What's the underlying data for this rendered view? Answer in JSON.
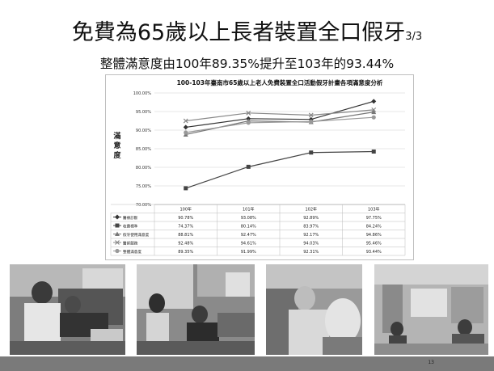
{
  "slide": {
    "title_main": "免費為65歲以上長者裝置全口假牙",
    "title_sub": "3/3",
    "subtitle": "整體滿意度由100年89.35%提升至103年的93.44%",
    "page_number": "13"
  },
  "chart_data": {
    "type": "line",
    "title": "100-103年臺南市65歲以上老人免費裝置全口活動假牙計畫各項滿意度分析",
    "ylabel": "滿意度",
    "categories": [
      "100年",
      "101年",
      "102年",
      "103年"
    ],
    "ylim": [
      70,
      100
    ],
    "ytick_labels": [
      "100.00%",
      "95.00%",
      "90.00%",
      "85.00%",
      "80.00%",
      "75.00%",
      "70.00%"
    ],
    "yticks": [
      100,
      95,
      90,
      85,
      80,
      75,
      70
    ],
    "series": [
      {
        "name": "醫療診斷",
        "values": [
          90.78,
          93.08,
          92.89,
          97.75
        ],
        "labels": [
          "90.78%",
          "93.08%",
          "92.89%",
          "97.75%"
        ],
        "color": "#333333",
        "marker": "diamond"
      },
      {
        "name": "收費標準",
        "values": [
          74.37,
          80.14,
          83.97,
          84.24
        ],
        "labels": [
          "74.37%",
          "80.14%",
          "83.97%",
          "84.24%"
        ],
        "color": "#444444",
        "marker": "square"
      },
      {
        "name": "假牙使用滿意度",
        "values": [
          88.81,
          92.47,
          92.17,
          94.86
        ],
        "labels": [
          "88.81%",
          "92.47%",
          "92.17%",
          "94.86%"
        ],
        "color": "#777777",
        "marker": "triangle"
      },
      {
        "name": "醫師服務",
        "values": [
          92.48,
          94.61,
          94.03,
          95.46
        ],
        "labels": [
          "92.48%",
          "94.61%",
          "94.03%",
          "95.46%"
        ],
        "color": "#888888",
        "marker": "x"
      },
      {
        "name": "整體滿意度",
        "values": [
          89.35,
          91.99,
          92.31,
          93.44
        ],
        "labels": [
          "89.35%",
          "91.99%",
          "92.31%",
          "93.44%"
        ],
        "color": "#999999",
        "marker": "circle"
      }
    ]
  },
  "photos": [
    {
      "alt": "dentist-treating-patient-photo"
    },
    {
      "alt": "dental-clinic-staff-photo"
    },
    {
      "alt": "elderly-patient-in-chair-photo"
    },
    {
      "alt": "waiting-room-photo"
    }
  ]
}
